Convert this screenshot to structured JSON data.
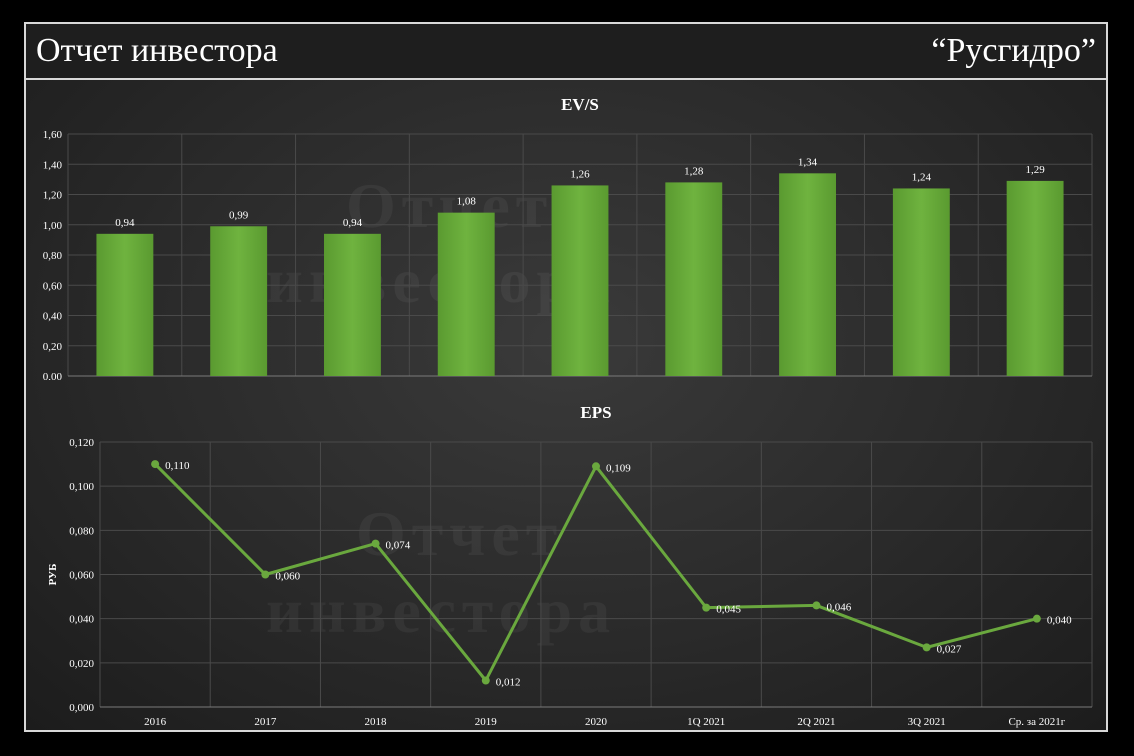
{
  "header": {
    "title": "Отчет инвестора",
    "company": "“Русгидро”"
  },
  "watermark": {
    "line1": "Отчет",
    "line2": "инвестора"
  },
  "chart_data": [
    {
      "type": "bar",
      "title": "EV/S",
      "categories": [
        "2016",
        "2017",
        "2018",
        "2019",
        "2020",
        "1Q 2021",
        "2Q 2021",
        "3Q 2021",
        "Ср. за 2021г"
      ],
      "values": [
        0.94,
        0.99,
        0.94,
        1.08,
        1.26,
        1.28,
        1.34,
        1.24,
        1.29
      ],
      "value_labels": [
        "0,94",
        "0,99",
        "0,94",
        "1,08",
        "1,26",
        "1,28",
        "1,34",
        "1,24",
        "1,29"
      ],
      "y_ticks": [
        "0,00",
        "0,20",
        "0,40",
        "0,60",
        "0,80",
        "1,00",
        "1,20",
        "1,40",
        "1,60"
      ],
      "ylim": [
        0,
        1.6
      ],
      "ylabel": "",
      "xlabel": "",
      "grid": true,
      "color": "#6fb33f"
    },
    {
      "type": "line",
      "title": "EPS",
      "categories": [
        "2016",
        "2017",
        "2018",
        "2019",
        "2020",
        "1Q 2021",
        "2Q 2021",
        "3Q 2021",
        "Ср. за 2021г"
      ],
      "values": [
        0.11,
        0.06,
        0.074,
        0.012,
        0.109,
        0.045,
        0.046,
        0.027,
        0.04
      ],
      "value_labels": [
        "0,110",
        "0,060",
        "0,074",
        "0,012",
        "0,109",
        "0,045",
        "0,046",
        "0,027",
        "0,040"
      ],
      "y_ticks": [
        "0,000",
        "0,020",
        "0,040",
        "0,060",
        "0,080",
        "0,100",
        "0,120"
      ],
      "ylim": [
        0,
        0.12
      ],
      "ylabel": "РУБ",
      "xlabel": "",
      "grid": true,
      "color": "#6aa83e"
    }
  ]
}
